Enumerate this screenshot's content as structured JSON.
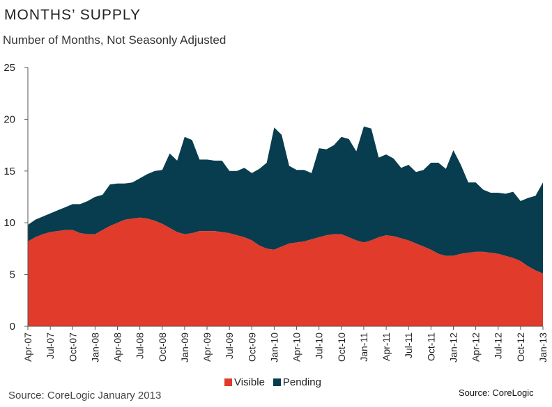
{
  "header": {
    "title": "MONTHS’ SUPPLY",
    "subtitle": "Number of Months, Not Seasonly Adjusted"
  },
  "footer": {
    "source_left": "Source: CoreLogic January 2013",
    "source_right": "Source: CoreLogic"
  },
  "colors": {
    "visible": "#e03b2b",
    "pending": "#073d4e",
    "axis": "#555555"
  },
  "chart_data": {
    "type": "area",
    "stacked": true,
    "title": "MONTHS’ SUPPLY",
    "subtitle": "Number of Months, Not Seasonly Adjusted",
    "ylim": [
      0,
      25
    ],
    "yticks": [
      0,
      5,
      10,
      15,
      20,
      25
    ],
    "x_tick_labels": [
      "Apr-07",
      "Jul-07",
      "Oct-07",
      "Jan-08",
      "Apr-08",
      "Jul-08",
      "Oct-08",
      "Jan-09",
      "Apr-09",
      "Jul-09",
      "Oct-09",
      "Jan-10",
      "Apr-10",
      "Jul-10",
      "Oct-10",
      "Jan-11",
      "Apr-11",
      "Jul-11",
      "Oct-11",
      "Jan-12",
      "Apr-12",
      "Jul-12",
      "Oct-12",
      "Jan-13"
    ],
    "x": [
      "Apr-07",
      "May-07",
      "Jun-07",
      "Jul-07",
      "Aug-07",
      "Sep-07",
      "Oct-07",
      "Nov-07",
      "Dec-07",
      "Jan-08",
      "Feb-08",
      "Mar-08",
      "Apr-08",
      "May-08",
      "Jun-08",
      "Jul-08",
      "Aug-08",
      "Sep-08",
      "Oct-08",
      "Nov-08",
      "Dec-08",
      "Jan-09",
      "Feb-09",
      "Mar-09",
      "Apr-09",
      "May-09",
      "Jun-09",
      "Jul-09",
      "Aug-09",
      "Sep-09",
      "Oct-09",
      "Nov-09",
      "Dec-09",
      "Jan-10",
      "Feb-10",
      "Mar-10",
      "Apr-10",
      "May-10",
      "Jun-10",
      "Jul-10",
      "Aug-10",
      "Sep-10",
      "Oct-10",
      "Nov-10",
      "Dec-10",
      "Jan-11",
      "Feb-11",
      "Mar-11",
      "Apr-11",
      "May-11",
      "Jun-11",
      "Jul-11",
      "Aug-11",
      "Sep-11",
      "Oct-11",
      "Nov-11",
      "Dec-11",
      "Jan-12",
      "Feb-12",
      "Mar-12",
      "Apr-12",
      "May-12",
      "Jun-12",
      "Jul-12",
      "Aug-12",
      "Sep-12",
      "Oct-12",
      "Nov-12",
      "Dec-12",
      "Jan-13"
    ],
    "series": [
      {
        "name": "Visible",
        "values": [
          8.2,
          8.6,
          8.9,
          9.1,
          9.2,
          9.3,
          9.3,
          9.0,
          8.9,
          8.9,
          9.3,
          9.7,
          10.0,
          10.3,
          10.4,
          10.5,
          10.4,
          10.2,
          9.9,
          9.5,
          9.1,
          8.9,
          9.0,
          9.2,
          9.2,
          9.2,
          9.1,
          9.0,
          8.8,
          8.6,
          8.3,
          7.8,
          7.5,
          7.4,
          7.7,
          8.0,
          8.1,
          8.2,
          8.4,
          8.6,
          8.8,
          8.9,
          8.9,
          8.6,
          8.3,
          8.1,
          8.3,
          8.6,
          8.8,
          8.7,
          8.5,
          8.3,
          8.0,
          7.7,
          7.4,
          7.0,
          6.8,
          6.8,
          7.0,
          7.1,
          7.2,
          7.2,
          7.1,
          7.0,
          6.8,
          6.6,
          6.3,
          5.8,
          5.4,
          5.1
        ]
      },
      {
        "name": "Pending",
        "values": [
          1.6,
          1.7,
          1.7,
          1.8,
          2.0,
          2.2,
          2.5,
          2.8,
          3.2,
          3.6,
          3.4,
          4.0,
          3.8,
          3.5,
          3.5,
          3.8,
          4.3,
          4.8,
          5.2,
          7.2,
          6.9,
          9.4,
          9.0,
          6.9,
          6.9,
          6.8,
          6.9,
          6.0,
          6.2,
          6.7,
          6.5,
          7.4,
          8.3,
          11.8,
          10.8,
          7.5,
          7.0,
          6.9,
          6.4,
          8.6,
          8.3,
          8.6,
          9.4,
          9.5,
          8.6,
          11.2,
          10.8,
          7.7,
          7.8,
          7.5,
          6.8,
          7.3,
          6.9,
          7.4,
          8.4,
          8.8,
          8.4,
          10.2,
          8.6,
          6.8,
          6.7,
          6.0,
          5.8,
          5.9,
          6.0,
          6.4,
          5.8,
          6.6,
          7.2,
          8.8
        ]
      }
    ]
  }
}
